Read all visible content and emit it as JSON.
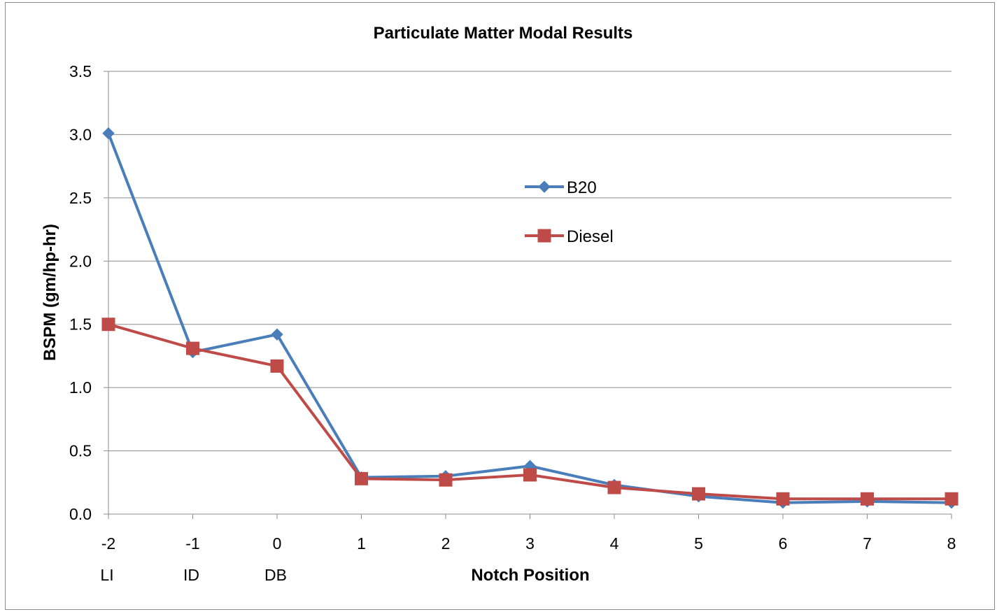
{
  "chart_data": {
    "type": "line",
    "title": "Particulate Matter Modal Results",
    "xlabel": "Notch Position",
    "ylabel": "BSPM (gm/hp-hr)",
    "x": [
      -2,
      -1,
      0,
      1,
      2,
      3,
      4,
      5,
      6,
      7,
      8
    ],
    "x_tick_labels": [
      "-2",
      "-1",
      "0",
      "1",
      "2",
      "3",
      "4",
      "5",
      "6",
      "7",
      "8"
    ],
    "x_sub_labels": [
      {
        "x": -2,
        "label": "LI"
      },
      {
        "x": -1,
        "label": "ID"
      },
      {
        "x": 0,
        "label": "DB"
      }
    ],
    "ylim": [
      0,
      3.5
    ],
    "y_ticks": [
      0,
      0.5,
      1.0,
      1.5,
      2.0,
      2.5,
      3.0,
      3.5
    ],
    "y_tick_labels": [
      "0.0",
      "0.5",
      "1.0",
      "1.5",
      "2.0",
      "2.5",
      "3.0",
      "3.5"
    ],
    "grid": "horizontal",
    "legend_position": "center-right",
    "series": [
      {
        "name": "B20",
        "color": "#4a7ebb",
        "marker": "diamond",
        "values": [
          3.01,
          1.28,
          1.42,
          0.29,
          0.3,
          0.38,
          0.23,
          0.14,
          0.09,
          0.1,
          0.09
        ]
      },
      {
        "name": "Diesel",
        "color": "#be4b48",
        "marker": "square",
        "values": [
          1.5,
          1.31,
          1.17,
          0.28,
          0.27,
          0.31,
          0.21,
          0.16,
          0.12,
          0.12,
          0.12
        ]
      }
    ]
  }
}
